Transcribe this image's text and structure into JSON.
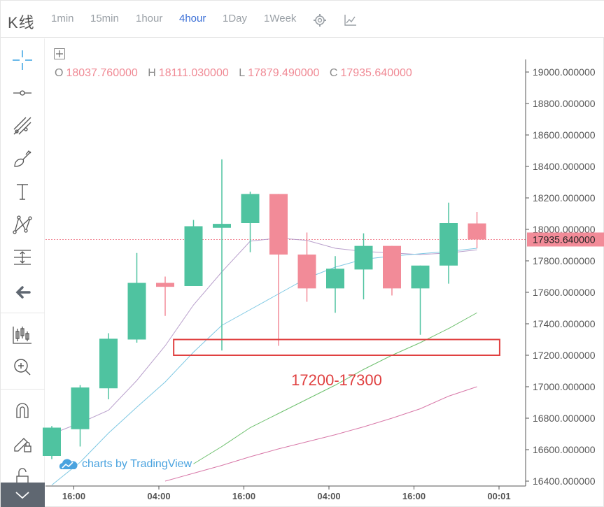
{
  "header": {
    "title": "K线",
    "timeframes": [
      "1min",
      "15min",
      "1hour",
      "4hour",
      "1Day",
      "1Week"
    ],
    "active_timeframe": "4hour"
  },
  "legend": {
    "open_label": "O",
    "open": "18037.760000",
    "high_label": "H",
    "high": "18111.030000",
    "low_label": "L",
    "low": "17879.490000",
    "close_label": "C",
    "close": "17935.640000"
  },
  "watermark": "charts by TradingView",
  "toolbar": {
    "icons": [
      "crosshair-icon",
      "horizontal-line-icon",
      "trend-lines-icon",
      "brush-icon",
      "text-icon",
      "pattern-icon",
      "measure-icon",
      "back-arrow-icon",
      "candles-icon",
      "zoom-in-icon",
      "magnet-icon",
      "lock-drawing-icon",
      "unlock-icon"
    ]
  },
  "chart_data": {
    "type": "candlestick",
    "y_ticks": [
      "19000.000000",
      "18800.000000",
      "18600.000000",
      "18400.000000",
      "18200.000000",
      "18000.000000",
      "17800.000000",
      "17600.000000",
      "17400.000000",
      "17200.000000",
      "17000.000000",
      "16800.000000",
      "16600.000000",
      "16400.000000"
    ],
    "x_ticks": [
      "16:00",
      "04:00",
      "16:00",
      "04:00",
      "16:00",
      "00:01"
    ],
    "ylim": [
      16400,
      19000
    ],
    "last_price_label": "17935.640000",
    "last_price": 17935.64,
    "colors": {
      "up": "#4fc3a0",
      "down": "#f28b98",
      "ma1": "#b9a0cc",
      "ma2": "#7ec8e3",
      "ma3": "#6cbf6c",
      "ma4": "#d878a8",
      "annotation": "#e04040"
    },
    "candles": [
      {
        "o": 16560,
        "h": 16750,
        "l": 16540,
        "c": 16740
      },
      {
        "o": 16730,
        "h": 17010,
        "l": 16620,
        "c": 16995
      },
      {
        "o": 16990,
        "h": 17340,
        "l": 16920,
        "c": 17305
      },
      {
        "o": 17300,
        "h": 17850,
        "l": 17280,
        "c": 17660
      },
      {
        "o": 17660,
        "h": 17700,
        "l": 17450,
        "c": 17635
      },
      {
        "o": 17640,
        "h": 18060,
        "l": 17640,
        "c": 18020
      },
      {
        "o": 18010,
        "h": 18445,
        "l": 17230,
        "c": 18035
      },
      {
        "o": 18040,
        "h": 18240,
        "l": 17855,
        "c": 18225
      },
      {
        "o": 18225,
        "h": 18225,
        "l": 17260,
        "c": 17840
      },
      {
        "o": 17840,
        "h": 17980,
        "l": 17540,
        "c": 17625
      },
      {
        "o": 17625,
        "h": 17830,
        "l": 17470,
        "c": 17750
      },
      {
        "o": 17745,
        "h": 17975,
        "l": 17555,
        "c": 17895
      },
      {
        "o": 17895,
        "h": 17895,
        "l": 17580,
        "c": 17625
      },
      {
        "o": 17625,
        "h": 17770,
        "l": 17330,
        "c": 17770
      },
      {
        "o": 17770,
        "h": 18170,
        "l": 17655,
        "c": 18040
      },
      {
        "o": 18037.76,
        "h": 18111.03,
        "l": 17879.49,
        "c": 17935.64
      }
    ],
    "ma_series": [
      {
        "values": [
          16700,
          16770,
          16850,
          17040,
          17260,
          17520,
          17730,
          17925,
          17945,
          17930,
          17880,
          17860,
          17850,
          17840,
          17850,
          17870
        ]
      },
      {
        "values": [
          16375,
          16520,
          16705,
          16870,
          17030,
          17220,
          17390,
          17490,
          17590,
          17690,
          17760,
          17810,
          17830,
          17845,
          17860,
          17880
        ]
      },
      {
        "values": [
          null,
          null,
          null,
          null,
          null,
          16510,
          16620,
          16740,
          16830,
          16920,
          17010,
          17110,
          17200,
          17280,
          17370,
          17470
        ]
      },
      {
        "values": [
          null,
          null,
          null,
          null,
          16400,
          16450,
          16500,
          16555,
          16605,
          16650,
          16695,
          16745,
          16800,
          16860,
          16940,
          17000
        ]
      }
    ],
    "annotation": {
      "range_low": 17200,
      "range_high": 17300,
      "label": "17200-17300",
      "candle_start": 4.3,
      "candle_end": 15.8
    }
  }
}
